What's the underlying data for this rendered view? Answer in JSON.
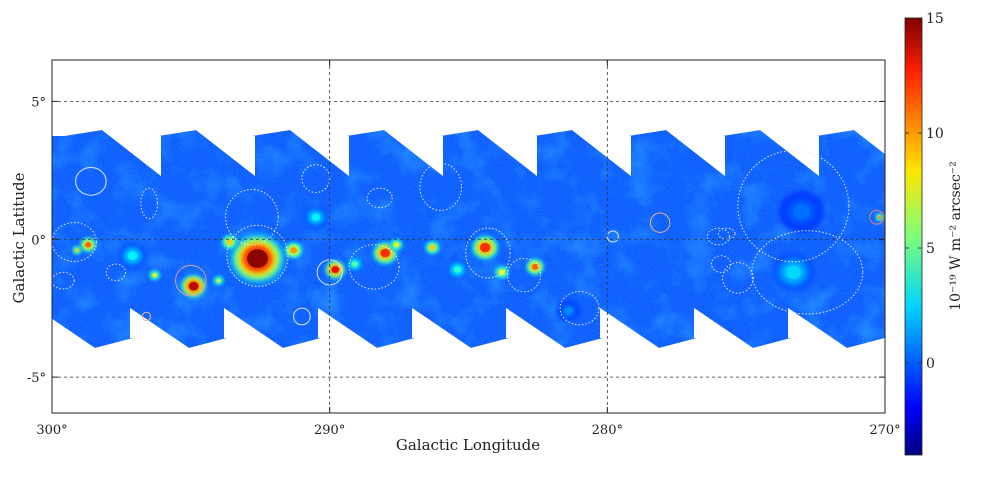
{
  "chart_data": {
    "type": "heatmap",
    "title": "",
    "xlabel": "Galactic Longitude",
    "ylabel": "Galactic Latitude",
    "xlim": [
      300,
      270
    ],
    "ylim": [
      -6.3,
      6.5
    ],
    "x_ticks": [
      {
        "value": 300,
        "label": "300°"
      },
      {
        "value": 290,
        "label": "290°"
      },
      {
        "value": 280,
        "label": "280°"
      },
      {
        "value": 270,
        "label": "270°"
      }
    ],
    "y_ticks": [
      {
        "value": 5,
        "label": "5°"
      },
      {
        "value": 0,
        "label": "0°"
      },
      {
        "value": -5,
        "label": "-5°"
      }
    ],
    "grid": true,
    "colorbar": {
      "label": "10⁻¹⁹ W m⁻² arcsec⁻²",
      "range": [
        -4,
        15
      ],
      "colormap": "jet",
      "ticks": [
        {
          "value": 0,
          "label": "0"
        },
        {
          "value": 5,
          "label": "5"
        },
        {
          "value": 10,
          "label": "10"
        },
        {
          "value": 15,
          "label": "15"
        }
      ]
    },
    "background_level": -1.2,
    "sources": [
      {
        "l": 292.6,
        "b": -0.7,
        "r": 0.75,
        "v": 15
      },
      {
        "l": 294.9,
        "b": -1.7,
        "r": 0.35,
        "v": 14
      },
      {
        "l": 288.0,
        "b": -0.5,
        "r": 0.35,
        "v": 12
      },
      {
        "l": 289.8,
        "b": -1.1,
        "r": 0.28,
        "v": 13
      },
      {
        "l": 284.4,
        "b": -0.3,
        "r": 0.38,
        "v": 12
      },
      {
        "l": 282.6,
        "b": -1.0,
        "r": 0.25,
        "v": 11
      },
      {
        "l": 298.7,
        "b": -0.2,
        "r": 0.22,
        "v": 11
      },
      {
        "l": 291.3,
        "b": -0.4,
        "r": 0.25,
        "v": 10
      },
      {
        "l": 293.6,
        "b": -0.1,
        "r": 0.22,
        "v": 9
      },
      {
        "l": 286.3,
        "b": -0.3,
        "r": 0.2,
        "v": 9
      },
      {
        "l": 287.6,
        "b": -0.2,
        "r": 0.18,
        "v": 8
      },
      {
        "l": 294.0,
        "b": -1.5,
        "r": 0.15,
        "v": 7
      },
      {
        "l": 283.8,
        "b": -1.2,
        "r": 0.2,
        "v": 8
      },
      {
        "l": 299.1,
        "b": -0.4,
        "r": 0.12,
        "v": 9
      },
      {
        "l": 296.3,
        "b": -1.3,
        "r": 0.15,
        "v": 8
      },
      {
        "l": 270.2,
        "b": 0.8,
        "r": 0.1,
        "v": 10
      },
      {
        "l": 273.3,
        "b": -1.2,
        "r": 0.55,
        "v": 2.5
      },
      {
        "l": 273.0,
        "b": 1.0,
        "r": 0.6,
        "v": 0.5
      },
      {
        "l": 290.5,
        "b": 0.8,
        "r": 0.3,
        "v": 3
      },
      {
        "l": 297.1,
        "b": -0.6,
        "r": 0.35,
        "v": 3
      },
      {
        "l": 289.1,
        "b": -0.9,
        "r": 0.2,
        "v": 5
      },
      {
        "l": 285.4,
        "b": -1.1,
        "r": 0.25,
        "v": 4
      },
      {
        "l": 281.4,
        "b": -2.6,
        "r": 0.3,
        "v": 1
      }
    ],
    "annotations": [
      {
        "l": 298.6,
        "b": 2.1,
        "rl": 0.55,
        "rb": 0.5,
        "style": "solid",
        "color": "#d8e8ff"
      },
      {
        "l": 297.7,
        "b": -1.2,
        "rl": 0.35,
        "rb": 0.3,
        "style": "dotted",
        "color": "#eeeeee"
      },
      {
        "l": 295.0,
        "b": -1.5,
        "rl": 0.55,
        "rb": 0.55,
        "style": "solid",
        "color": "#d8a0a0"
      },
      {
        "l": 292.8,
        "b": 0.8,
        "rl": 0.95,
        "rb": 1.0,
        "style": "dotted",
        "color": "#eeeeee"
      },
      {
        "l": 290.5,
        "b": 2.2,
        "rl": 0.5,
        "rb": 0.5,
        "style": "dotted",
        "color": "#eeeeee"
      },
      {
        "l": 288.2,
        "b": 1.5,
        "rl": 0.45,
        "rb": 0.35,
        "style": "dotted",
        "color": "#eeeeee"
      },
      {
        "l": 286.0,
        "b": 1.9,
        "rl": 0.75,
        "rb": 0.85,
        "style": "dotted",
        "color": "#eeeeee"
      },
      {
        "l": 292.6,
        "b": -0.6,
        "rl": 1.1,
        "rb": 1.1,
        "style": "dotted",
        "color": "#eeeeee"
      },
      {
        "l": 288.4,
        "b": -1.0,
        "rl": 0.9,
        "rb": 0.8,
        "style": "dotted",
        "color": "#eeeeee"
      },
      {
        "l": 284.3,
        "b": -0.5,
        "rl": 0.8,
        "rb": 0.9,
        "style": "dotted",
        "color": "#eeeeee"
      },
      {
        "l": 281.0,
        "b": -2.5,
        "rl": 0.7,
        "rb": 0.6,
        "style": "dotted",
        "color": "#eeeeee"
      },
      {
        "l": 278.1,
        "b": 0.6,
        "rl": 0.35,
        "rb": 0.35,
        "style": "solid",
        "color": "#f0b070"
      },
      {
        "l": 273.3,
        "b": 1.2,
        "rl": 2.0,
        "rb": 2.0,
        "style": "dotted",
        "color": "#eeeeee"
      },
      {
        "l": 272.8,
        "b": -1.2,
        "rl": 2.0,
        "rb": 1.5,
        "style": "dotted",
        "color": "#eeeeee"
      },
      {
        "l": 275.3,
        "b": -1.4,
        "rl": 0.55,
        "rb": 0.55,
        "style": "dotted",
        "color": "#eeeeee"
      },
      {
        "l": 275.7,
        "b": 0.2,
        "rl": 0.3,
        "rb": 0.2,
        "style": "dotted",
        "color": "#eeeeee"
      },
      {
        "l": 296.5,
        "b": 1.3,
        "rl": 0.3,
        "rb": 0.55,
        "style": "dotted",
        "color": "#eeeeee"
      },
      {
        "l": 291.0,
        "b": -2.8,
        "rl": 0.3,
        "rb": 0.3,
        "style": "solid",
        "color": "#d8e8ff"
      },
      {
        "l": 299.2,
        "b": -0.1,
        "rl": 0.8,
        "rb": 0.7,
        "style": "dotted",
        "color": "#eeeeee"
      },
      {
        "l": 283.0,
        "b": -1.3,
        "rl": 0.6,
        "rb": 0.6,
        "style": "dotted",
        "color": "#eeeeee"
      },
      {
        "l": 290.0,
        "b": -1.2,
        "rl": 0.45,
        "rb": 0.45,
        "style": "solid",
        "color": "#d8e8ff"
      },
      {
        "l": 299.6,
        "b": -1.5,
        "rl": 0.4,
        "rb": 0.3,
        "style": "dotted",
        "color": "#eeeeee"
      },
      {
        "l": 296.6,
        "b": -2.8,
        "rl": 0.15,
        "rb": 0.15,
        "style": "solid",
        "color": "#e8c080"
      },
      {
        "l": 270.3,
        "b": 0.8,
        "rl": 0.25,
        "rb": 0.25,
        "style": "solid",
        "color": "#d88080"
      },
      {
        "l": 279.8,
        "b": 0.1,
        "rl": 0.2,
        "rb": 0.2,
        "style": "solid",
        "color": "#d8e8ff"
      },
      {
        "l": 275.9,
        "b": -0.9,
        "rl": 0.35,
        "rb": 0.3,
        "style": "dotted",
        "color": "#eeeeee"
      },
      {
        "l": 276.0,
        "b": 0.1,
        "rl": 0.4,
        "rb": 0.3,
        "style": "dotted",
        "color": "#eeeeee"
      }
    ]
  }
}
